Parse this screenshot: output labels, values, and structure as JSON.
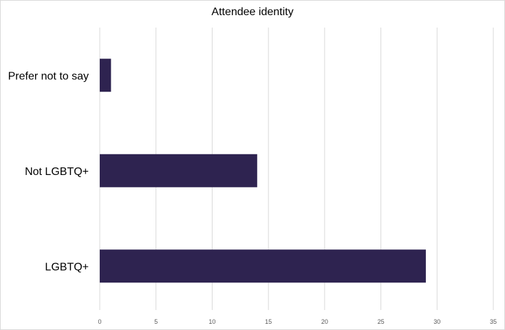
{
  "chart_data": {
    "type": "bar",
    "orientation": "horizontal",
    "title": "Attendee identity",
    "xlabel": "",
    "ylabel": "",
    "categories": [
      "Prefer not to say",
      "Not LGBTQ+",
      "LGBTQ+"
    ],
    "values": [
      1,
      14,
      29
    ],
    "xlim": [
      0,
      35
    ],
    "xticks": [
      0,
      5,
      10,
      15,
      20,
      25,
      30,
      35
    ],
    "grid": "vertical",
    "legend": "none",
    "bar_color": "#2e2350",
    "grid_color": "#d9d9d9"
  }
}
